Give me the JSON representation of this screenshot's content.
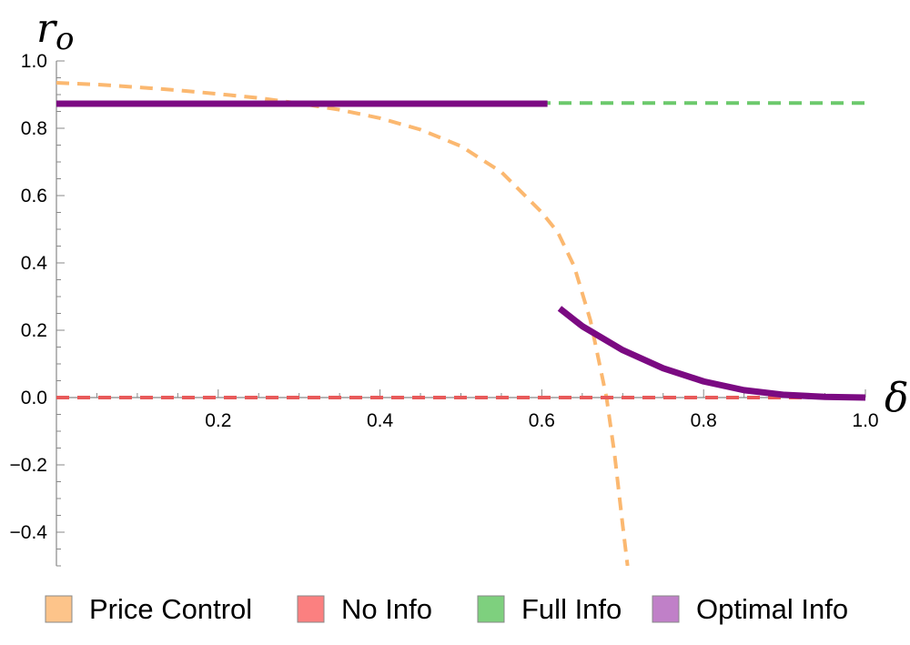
{
  "chart_data": {
    "type": "line",
    "title": "",
    "xlabel": "δ",
    "ylabel": "r",
    "ylabel_sub": "o",
    "xlim": [
      0,
      1
    ],
    "ylim": [
      -0.5,
      1.0
    ],
    "x_ticks": [
      0.2,
      0.4,
      0.6,
      0.8,
      1.0
    ],
    "x_tick_labels": [
      "0.2",
      "0.4",
      "0.6",
      "0.8",
      "1.0"
    ],
    "y_ticks": [
      1.0,
      0.8,
      0.6,
      0.4,
      0.2,
      0.0,
      -0.2,
      -0.4
    ],
    "y_tick_labels": [
      "1.0",
      "0.8",
      "0.6",
      "0.4",
      "0.2",
      "0.0",
      "−0.2",
      "−0.4"
    ],
    "grid": false,
    "legend_position": "bottom",
    "series": [
      {
        "name": "Price Control",
        "color": "#fbb870",
        "legend_color": "#fdc48a",
        "style": "dashed",
        "points": [
          [
            0.0,
            0.935
          ],
          [
            0.05,
            0.93
          ],
          [
            0.1,
            0.922
          ],
          [
            0.15,
            0.913
          ],
          [
            0.2,
            0.902
          ],
          [
            0.25,
            0.89
          ],
          [
            0.3,
            0.874
          ],
          [
            0.35,
            0.855
          ],
          [
            0.4,
            0.83
          ],
          [
            0.45,
            0.796
          ],
          [
            0.5,
            0.747
          ],
          [
            0.55,
            0.67
          ],
          [
            0.6,
            0.55
          ],
          [
            0.62,
            0.49
          ],
          [
            0.64,
            0.39
          ],
          [
            0.66,
            0.23
          ],
          [
            0.68,
            0.0
          ],
          [
            0.69,
            -0.17
          ],
          [
            0.7,
            -0.38
          ],
          [
            0.706,
            -0.5
          ]
        ]
      },
      {
        "name": "No Info",
        "color": "#e85a5a",
        "legend_color": "#fb8080",
        "style": "dashed",
        "points": [
          [
            0.0,
            0.0
          ],
          [
            1.0,
            0.0
          ]
        ]
      },
      {
        "name": "Full Info",
        "color": "#6cc96c",
        "legend_color": "#7ed07e",
        "style": "dashed",
        "points": [
          [
            0.0,
            0.875
          ],
          [
            1.0,
            0.875
          ]
        ]
      },
      {
        "name": "Optimal Info",
        "color": "#7b0a82",
        "legend_color": "#c080c8",
        "style": "solid",
        "segments": [
          [
            [
              0.0,
              0.873
            ],
            [
              0.607,
              0.873
            ]
          ],
          [
            [
              0.622,
              0.265
            ],
            [
              0.65,
              0.212
            ],
            [
              0.7,
              0.141
            ],
            [
              0.75,
              0.087
            ],
            [
              0.8,
              0.048
            ],
            [
              0.85,
              0.022
            ],
            [
              0.9,
              0.008
            ],
            [
              0.95,
              0.002
            ],
            [
              1.0,
              0.0
            ]
          ]
        ]
      }
    ]
  }
}
